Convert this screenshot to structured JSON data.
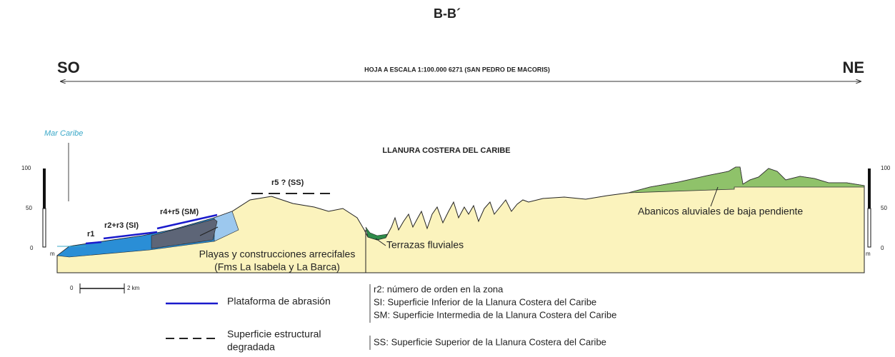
{
  "header": {
    "title": "B-B´",
    "left": "SO",
    "right": "NE",
    "sheet": "HOJA A ESCALA 1:100.000 6271 (SAN PEDRO DE MACORIS)"
  },
  "section": {
    "sea": "Mar Caribe",
    "region": "LLANURA COSTERA DEL CARIBE",
    "surfaces": [
      "r1",
      "r2+r3 (SI)",
      "r4+r5 (SM)",
      "r5 ? (SS)"
    ],
    "units": [
      [
        "Playas y construcciones arrecifales",
        "(Fms La Isabela y La Barca)"
      ],
      "Terrazas fluviales",
      "Abanicos aluviales de baja pendiente"
    ]
  },
  "scales": {
    "left": {
      "ticks": [
        100,
        50,
        0
      ],
      "unit": "m"
    },
    "right": {
      "ticks": [
        100,
        50,
        0
      ],
      "unit": "m"
    },
    "distance": [
      "0",
      "2 km"
    ]
  },
  "legend": {
    "items": [
      "Plataforma de abrasión",
      [
        "Superficie estructural",
        "degradada"
      ]
    ],
    "notes": [
      "r2: número de orden en la zona",
      "SI: Superficie Inferior de la Llanura Costera del Caribe",
      "SM: Superficie Intermedia de la Llanura Costera del Caribe",
      "SS: Superficie Superior de la Llanura Costera del Caribe"
    ]
  }
}
